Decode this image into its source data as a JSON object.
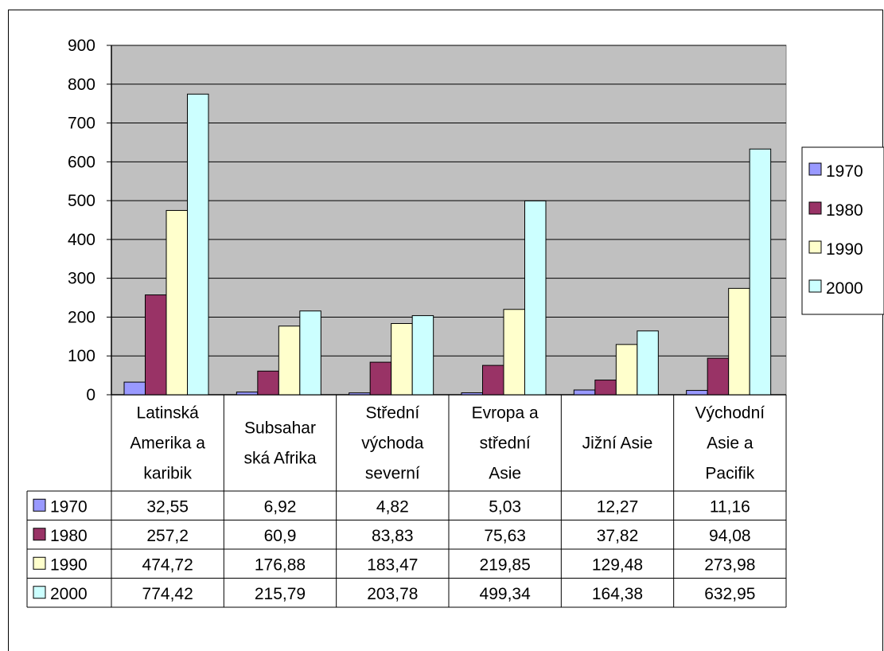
{
  "chart_data": {
    "type": "bar",
    "categories": [
      [
        "Latinská",
        "Amerika a",
        "karibik"
      ],
      [
        "Subsahar",
        "ská Afrika"
      ],
      [
        "Střední",
        "východa",
        "severní"
      ],
      [
        "Evropa a",
        "střední",
        "Asie"
      ],
      [
        "Jižní Asie"
      ],
      [
        "Východní",
        "Asie a",
        "Pacifik"
      ]
    ],
    "series": [
      {
        "name": "1970",
        "color": "#9999FF",
        "values": [
          32.55,
          6.92,
          4.82,
          5.03,
          12.27,
          11.16
        ],
        "labels": [
          "32,55",
          "6,92",
          "4,82",
          "5,03",
          "12,27",
          "11,16"
        ]
      },
      {
        "name": "1980",
        "color": "#993366",
        "values": [
          257.2,
          60.9,
          83.83,
          75.63,
          37.82,
          94.08
        ],
        "labels": [
          "257,2",
          "60,9",
          "83,83",
          "75,63",
          "37,82",
          "94,08"
        ]
      },
      {
        "name": "1990",
        "color": "#FFFFCC",
        "values": [
          474.72,
          176.88,
          183.47,
          219.85,
          129.48,
          273.98
        ],
        "labels": [
          "474,72",
          "176,88",
          "183,47",
          "219,85",
          "129,48",
          "273,98"
        ]
      },
      {
        "name": "2000",
        "color": "#CCFFFF",
        "values": [
          774.42,
          215.79,
          203.78,
          499.34,
          164.38,
          632.95
        ],
        "labels": [
          "774,42",
          "215,79",
          "203,78",
          "499,34",
          "164,38",
          "632,95"
        ]
      }
    ],
    "yticks": [
      "0",
      "100",
      "200",
      "300",
      "400",
      "500",
      "600",
      "700",
      "800",
      "900"
    ],
    "ylim": [
      0,
      900
    ],
    "grid": true,
    "plot_background": "#C0C0C0",
    "legend_position": "right",
    "data_table": true
  }
}
